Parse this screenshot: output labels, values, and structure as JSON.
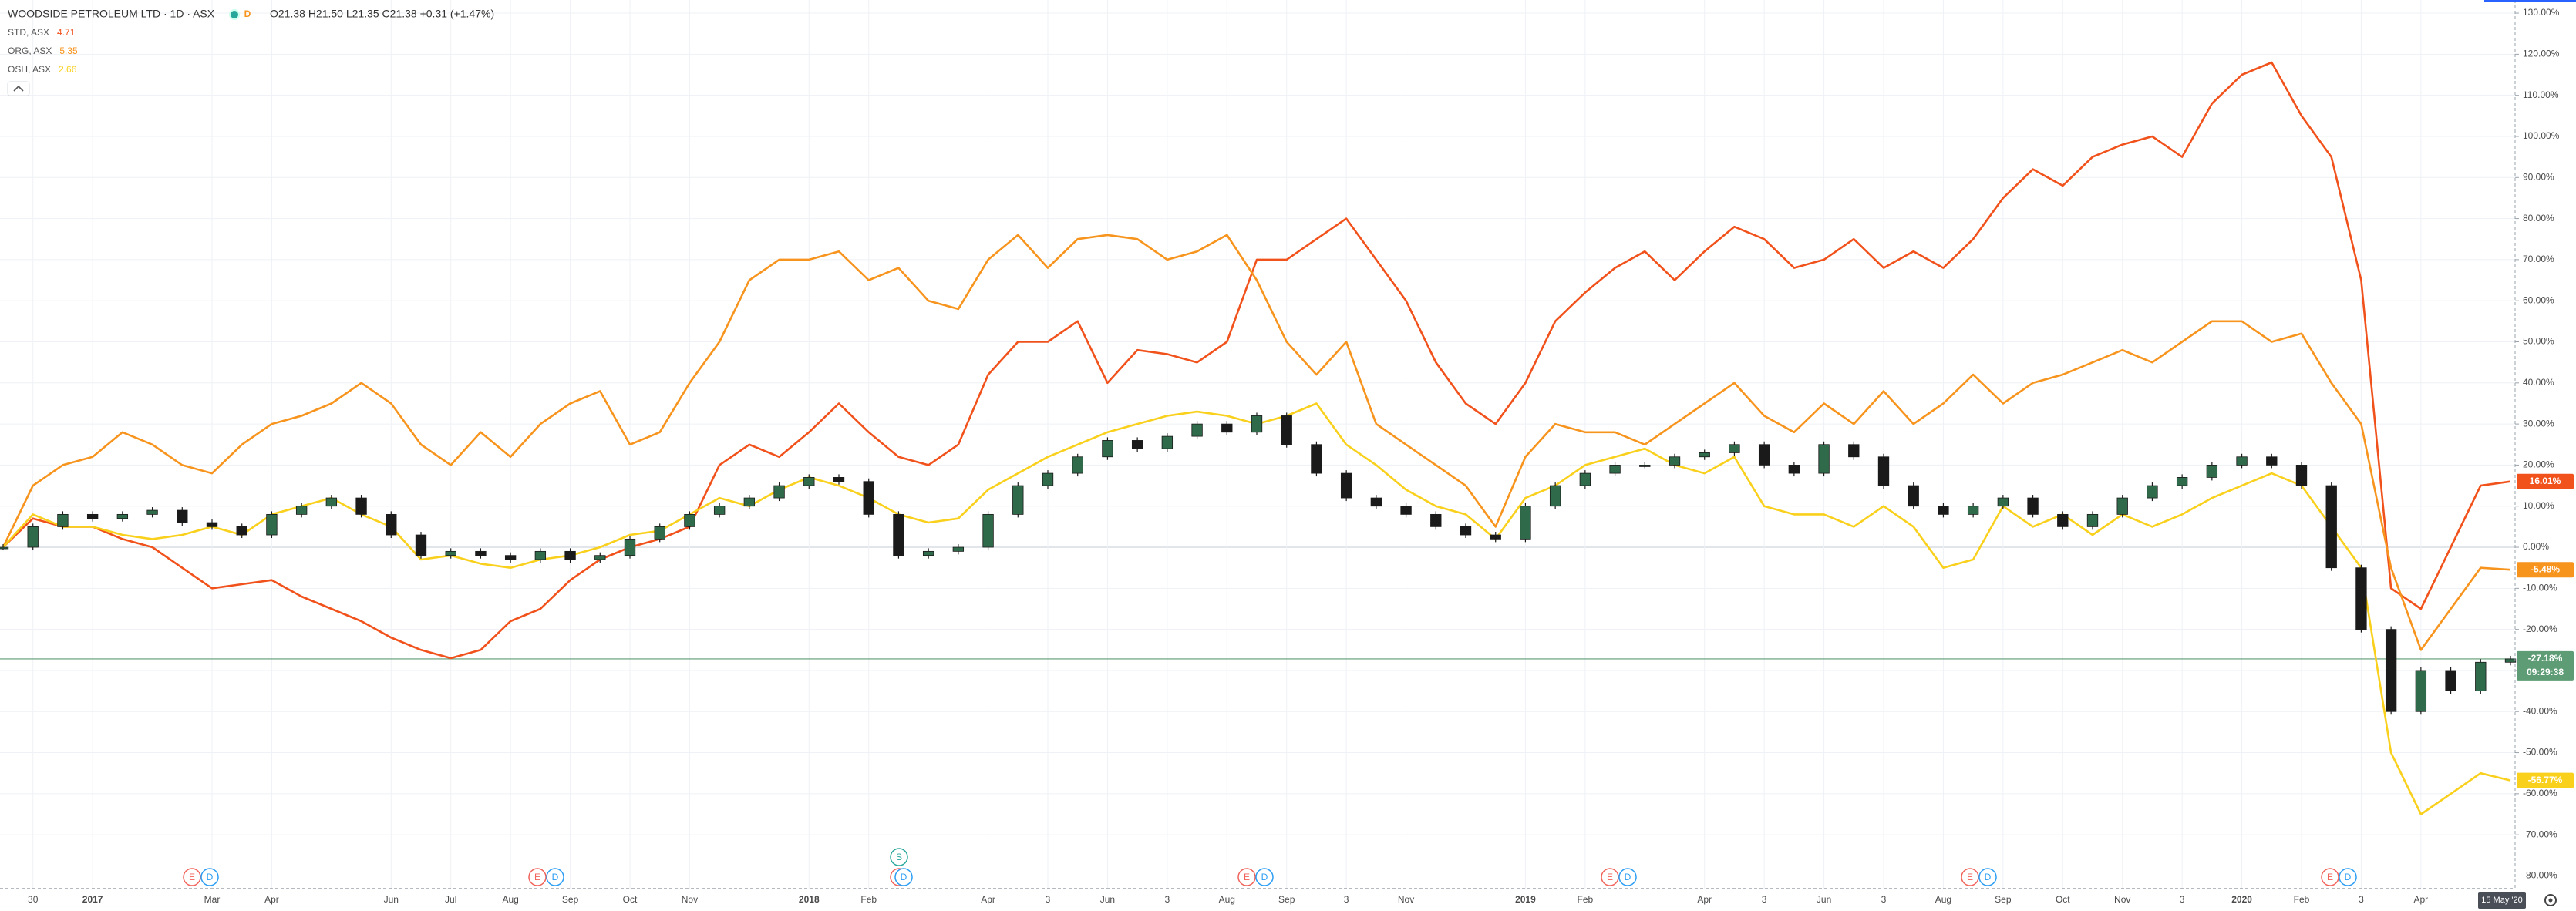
{
  "chart_data": {
    "type": "line",
    "title": "WOODSIDE PETROLEUM LTD · 1D · ASX",
    "interval_badge": "D",
    "ohlc": "O21.38 H21.50 L21.35 C21.38 +0.31 (+1.47%)",
    "categories": [
      null,
      "30",
      null,
      "2017",
      null,
      null,
      null,
      "Mar",
      null,
      "Apr",
      null,
      null,
      null,
      "Jun",
      null,
      "Jul",
      null,
      "Aug",
      null,
      "Sep",
      null,
      "Oct",
      null,
      "Nov",
      null,
      null,
      null,
      "2018",
      null,
      "Feb",
      null,
      null,
      null,
      "Apr",
      null,
      "3",
      null,
      "Jun",
      null,
      "3",
      null,
      "Aug",
      null,
      "Sep",
      null,
      "3",
      null,
      "Nov",
      null,
      null,
      null,
      "2019",
      null,
      "Feb",
      null,
      null,
      null,
      "Apr",
      null,
      "3",
      null,
      "Jun",
      null,
      "3",
      null,
      "Aug",
      null,
      "Sep",
      null,
      "Oct",
      null,
      "Nov",
      null,
      "3",
      null,
      "2020",
      null,
      "Feb",
      null,
      "3",
      null,
      "Apr",
      null,
      null,
      null
    ],
    "series": [
      {
        "name": "STD, ASX",
        "price": "4.71",
        "color": "#f1511b",
        "last_value_label": "16.01%",
        "values": [
          0,
          7,
          5,
          5,
          2,
          0,
          -5,
          -10,
          -9,
          -8,
          -12,
          -15,
          -18,
          -22,
          -25,
          -27,
          -25,
          -18,
          -15,
          -8,
          -3,
          0,
          2,
          5,
          20,
          25,
          22,
          28,
          35,
          28,
          22,
          20,
          25,
          42,
          50,
          50,
          55,
          40,
          48,
          47,
          45,
          50,
          70,
          70,
          75,
          80,
          70,
          60,
          45,
          35,
          30,
          40,
          55,
          62,
          68,
          72,
          65,
          72,
          78,
          75,
          68,
          70,
          75,
          68,
          72,
          68,
          75,
          85,
          92,
          88,
          95,
          98,
          100,
          95,
          108,
          115,
          118,
          105,
          95,
          65,
          -10,
          -15,
          0,
          15,
          16.01
        ]
      },
      {
        "name": "ORG, ASX",
        "price": "5.35",
        "color": "#f7941d",
        "last_value_label": "-5.48%",
        "values": [
          0,
          15,
          20,
          22,
          28,
          25,
          20,
          18,
          25,
          30,
          32,
          35,
          40,
          35,
          25,
          20,
          28,
          22,
          30,
          35,
          38,
          25,
          28,
          40,
          50,
          65,
          70,
          70,
          72,
          65,
          68,
          60,
          58,
          70,
          76,
          68,
          75,
          76,
          75,
          70,
          72,
          76,
          65,
          50,
          42,
          50,
          30,
          25,
          20,
          15,
          5,
          22,
          30,
          28,
          28,
          25,
          30,
          35,
          40,
          32,
          28,
          35,
          30,
          38,
          30,
          35,
          42,
          35,
          40,
          42,
          45,
          48,
          45,
          50,
          55,
          55,
          50,
          52,
          40,
          30,
          -5,
          -25,
          -15,
          -5,
          -5.48
        ]
      },
      {
        "name": "OSH, ASX",
        "price": "2.66",
        "color": "#f9d01c",
        "last_value_label": "-56.77%",
        "values": [
          0,
          8,
          5,
          5,
          3,
          2,
          3,
          5,
          3,
          8,
          10,
          12,
          8,
          5,
          -3,
          -2,
          -4,
          -5,
          -3,
          -2,
          0,
          3,
          4,
          8,
          12,
          10,
          14,
          17,
          15,
          12,
          8,
          6,
          7,
          14,
          18,
          22,
          25,
          28,
          30,
          32,
          33,
          32,
          30,
          32,
          35,
          25,
          20,
          14,
          10,
          8,
          2,
          12,
          15,
          20,
          22,
          24,
          20,
          18,
          22,
          10,
          8,
          8,
          5,
          10,
          5,
          -5,
          -3,
          10,
          5,
          8,
          3,
          8,
          5,
          8,
          12,
          15,
          18,
          15,
          5,
          -5,
          -50,
          -65,
          -60,
          -55,
          -56.77
        ]
      },
      {
        "type": "candlestick",
        "color": "#5d9c74",
        "up_color": "#2f6b4a",
        "down_color": "#1a1a1a",
        "last_value_label": "-27.18%",
        "countdown": "09:29:38",
        "values": [
          0,
          5,
          8,
          7,
          8,
          9,
          6,
          5,
          3,
          8,
          10,
          12,
          8,
          3,
          -2,
          -1,
          -2,
          -3,
          -1,
          -3,
          -2,
          2,
          5,
          8,
          10,
          12,
          15,
          17,
          16,
          8,
          -2,
          -1,
          0,
          8,
          15,
          18,
          22,
          26,
          24,
          27,
          30,
          28,
          32,
          25,
          18,
          12,
          10,
          8,
          5,
          3,
          2,
          10,
          15,
          18,
          20,
          20,
          22,
          23,
          25,
          20,
          18,
          25,
          22,
          15,
          10,
          8,
          10,
          12,
          8,
          5,
          8,
          12,
          15,
          17,
          20,
          22,
          20,
          15,
          -5,
          -20,
          -40,
          -30,
          -35,
          -28,
          -27.18
        ]
      }
    ],
    "ylim": [
      -83.1,
      133.2
    ],
    "yticks": [
      {
        "value": 130,
        "label": "130.00%"
      },
      {
        "value": 120,
        "label": "120.00%"
      },
      {
        "value": 110,
        "label": "110.00%"
      },
      {
        "value": 100,
        "label": "100.00%"
      },
      {
        "value": 90,
        "label": "90.00%"
      },
      {
        "value": 80,
        "label": "80.00%"
      },
      {
        "value": 70,
        "label": "70.00%"
      },
      {
        "value": 60,
        "label": "60.00%"
      },
      {
        "value": 50,
        "label": "50.00%"
      },
      {
        "value": 40,
        "label": "40.00%"
      },
      {
        "value": 30,
        "label": "30.00%"
      },
      {
        "value": 20,
        "label": "20.00%"
      },
      {
        "value": 10,
        "label": "10.00%"
      },
      {
        "value": 0,
        "label": "0.00%"
      },
      {
        "value": -10,
        "label": "-10.00%"
      },
      {
        "value": -20,
        "label": "-20.00%"
      },
      {
        "value": -30,
        "label": "-30.00%"
      },
      {
        "value": -40,
        "label": "-40.00%"
      },
      {
        "value": -50,
        "label": "-50.00%"
      },
      {
        "value": -60,
        "label": "-60.00%"
      },
      {
        "value": -70,
        "label": "-70.00%"
      },
      {
        "value": -80,
        "label": "-80.00%"
      }
    ],
    "grid": true,
    "events": [
      [
        "E",
        "D"
      ],
      [
        "E",
        "D"
      ],
      [
        "S",
        "E",
        "D"
      ],
      [
        "E",
        "D"
      ],
      [
        "E",
        "D"
      ],
      [
        "E",
        "D"
      ],
      [
        "E",
        "D"
      ]
    ],
    "date_badge": "15 May '20"
  }
}
